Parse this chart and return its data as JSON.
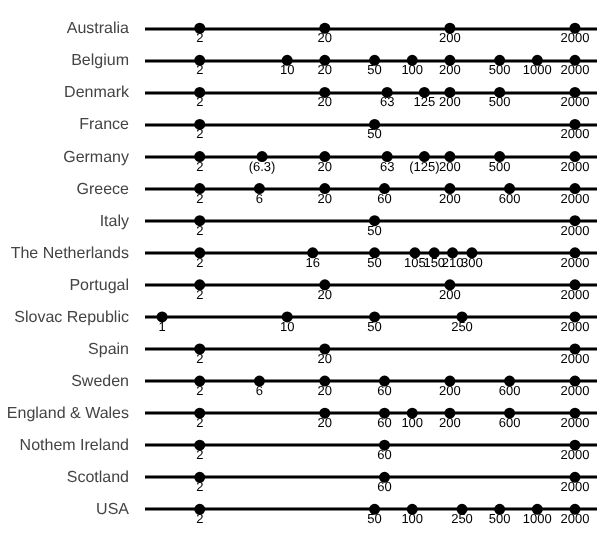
{
  "chart_data": {
    "type": "scatter",
    "orientation": "horizontal",
    "log": "x",
    "grid": "y",
    "tick_labels": "y",
    "marker": "circle",
    "xlim": [
      0.73,
      3000
    ],
    "categories": [
      "Australia",
      "Belgium",
      "Denmark",
      "France",
      "Germany",
      "Greece",
      "Italy",
      "The Netherlands",
      "Portugal",
      "Slovac Republic",
      "Spain",
      "Sweden",
      "England & Wales",
      "Nothem Ireland",
      "Scotland",
      "USA"
    ],
    "series": [
      {
        "color": "#000000",
        "values": [
          2,
          2,
          2,
          2,
          2,
          2,
          2,
          2,
          2,
          1,
          2,
          2,
          2,
          2,
          2,
          2
        ],
        "value_labels": [
          "2",
          "2",
          "2",
          "2",
          "2",
          "2",
          "2",
          "2",
          "2",
          "1",
          "2",
          "2",
          "2",
          "2",
          "2",
          "2"
        ]
      },
      {
        "color": "#000000",
        "values": [
          20,
          10,
          20,
          50,
          6.3,
          6,
          50,
          16,
          20,
          10,
          20,
          6,
          20,
          60,
          60,
          50
        ],
        "value_labels": [
          "20",
          "10",
          "20",
          "50",
          "(6.3)",
          "6",
          "50",
          "16",
          "20",
          "10",
          "20",
          "6",
          "20",
          "60",
          "60",
          "50"
        ]
      },
      {
        "color": "#000000",
        "values": [
          200,
          20,
          63,
          2000,
          20,
          20,
          2000,
          50,
          200,
          50,
          2000,
          20,
          60,
          2000,
          2000,
          100
        ],
        "value_labels": [
          "200",
          "20",
          "63",
          "2000",
          "20",
          "20",
          "2000",
          "50",
          "200",
          "50",
          "2000",
          "20",
          "60",
          "2000",
          "2000",
          "100"
        ]
      },
      {
        "color": "#000000",
        "values": [
          2000,
          50,
          125,
          null,
          63,
          60,
          null,
          105,
          2000,
          250,
          null,
          60,
          100,
          null,
          null,
          250
        ],
        "value_labels": [
          "2000",
          "50",
          "125",
          null,
          "63",
          "60",
          null,
          "105",
          "2000",
          "250",
          null,
          "60",
          "100",
          null,
          null,
          "250"
        ]
      },
      {
        "color": "#000000",
        "values": [
          null,
          100,
          200,
          null,
          125,
          200,
          null,
          150,
          null,
          2000,
          null,
          200,
          200,
          null,
          null,
          500
        ],
        "value_labels": [
          null,
          "100",
          "200",
          null,
          "(125)",
          "200",
          null,
          "150",
          null,
          "2000",
          null,
          "200",
          "200",
          null,
          null,
          "500"
        ]
      },
      {
        "color": "#000000",
        "values": [
          null,
          200,
          500,
          null,
          200,
          600,
          null,
          210,
          null,
          null,
          null,
          600,
          600,
          null,
          null,
          1000
        ],
        "value_labels": [
          null,
          "200",
          "500",
          null,
          "200",
          "600",
          null,
          "210",
          null,
          null,
          null,
          "600",
          "600",
          null,
          null,
          "1000"
        ]
      },
      {
        "color": "#000000",
        "values": [
          null,
          500,
          2000,
          null,
          500,
          2000,
          null,
          300,
          null,
          null,
          null,
          2000,
          2000,
          null,
          null,
          2000
        ],
        "value_labels": [
          null,
          "500",
          "2000",
          null,
          "500",
          "2000",
          null,
          "300",
          null,
          null,
          null,
          "2000",
          "2000",
          null,
          null,
          "2000"
        ]
      },
      {
        "color": "#000000",
        "values": [
          null,
          1000,
          null,
          null,
          2000,
          null,
          null,
          2000,
          null,
          null,
          null,
          null,
          null,
          null,
          null,
          null
        ],
        "value_labels": [
          null,
          "1000",
          null,
          null,
          "2000",
          null,
          null,
          "2000",
          null,
          null,
          null,
          null,
          null,
          null,
          null,
          null
        ]
      },
      {
        "color": "#000000",
        "values": [
          null,
          2000,
          null,
          null,
          null,
          null,
          null,
          null,
          null,
          null,
          null,
          null,
          null,
          null,
          null,
          null
        ],
        "value_labels": [
          null,
          "2000",
          null,
          null,
          null,
          null,
          null,
          null,
          null,
          null,
          null,
          null,
          null,
          null,
          null,
          null
        ]
      }
    ]
  }
}
